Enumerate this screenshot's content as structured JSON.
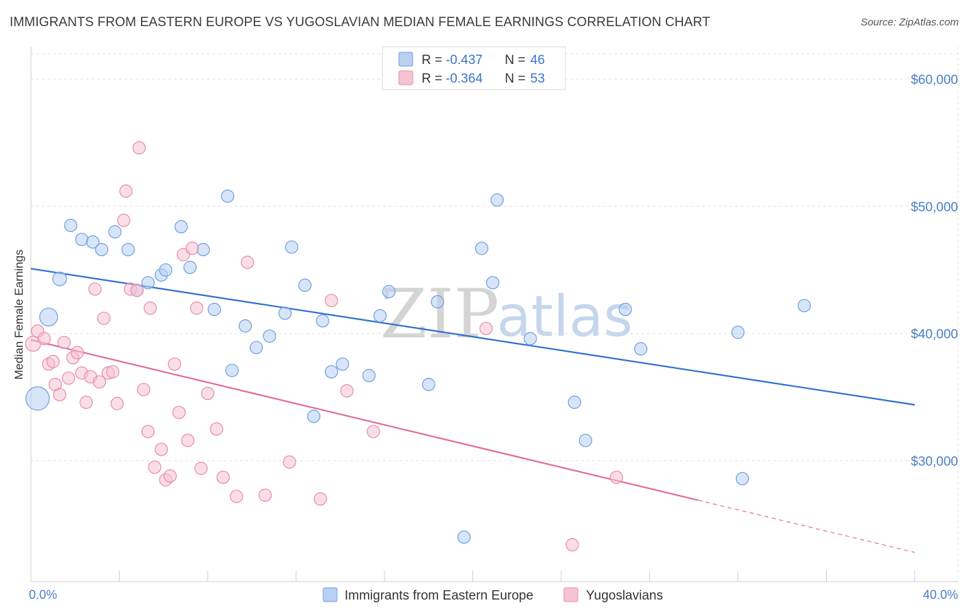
{
  "title": "IMMIGRANTS FROM EASTERN EUROPE VS YUGOSLAVIAN MEDIAN FEMALE EARNINGS CORRELATION CHART",
  "source": "Source: ZipAtlas.com",
  "watermark": {
    "zip": "ZIP",
    "atlas": "atlas"
  },
  "legend": {
    "r_label": "R =",
    "n_label": "N =",
    "rows": [
      {
        "r": "-0.437",
        "n": "46"
      },
      {
        "r": "-0.364",
        "n": "53"
      }
    ]
  },
  "chart_data": {
    "type": "scatter",
    "title": "IMMIGRANTS FROM EASTERN EUROPE VS YUGOSLAVIAN MEDIAN FEMALE EARNINGS CORRELATION CHART",
    "xlabel": "",
    "ylabel": "Median Female Earnings",
    "xlim": [
      0,
      40
    ],
    "ylim": [
      20500,
      62000
    ],
    "x_tick_labels": [
      "0.0%",
      "40.0%"
    ],
    "y_ticks": [
      30000,
      40000,
      50000,
      60000
    ],
    "y_tick_labels": [
      "$30,000",
      "$40,000",
      "$50,000",
      "$60,000"
    ],
    "grid": true,
    "series": [
      {
        "name": "Immigrants from Eastern Europe",
        "color": "#6b9ee0",
        "fill": "#b8d0f2",
        "trend": {
          "x": [
            0,
            40
          ],
          "y": [
            45100,
            34400
          ]
        },
        "points": [
          [
            0.3,
            34900,
            17
          ],
          [
            1.3,
            44300,
            10
          ],
          [
            0.8,
            41300,
            13
          ],
          [
            1.8,
            48500,
            9
          ],
          [
            2.3,
            47400,
            9
          ],
          [
            2.8,
            47200,
            9
          ],
          [
            3.2,
            46600,
            9
          ],
          [
            3.8,
            48000,
            9
          ],
          [
            4.4,
            46600,
            9
          ],
          [
            4.8,
            43400,
            9
          ],
          [
            5.3,
            44000,
            9
          ],
          [
            5.9,
            44600,
            9
          ],
          [
            6.1,
            45000,
            9
          ],
          [
            6.8,
            48400,
            9
          ],
          [
            7.2,
            45200,
            9
          ],
          [
            7.8,
            46600,
            9
          ],
          [
            8.3,
            41900,
            9
          ],
          [
            8.9,
            50800,
            9
          ],
          [
            9.1,
            37100,
            9
          ],
          [
            9.7,
            40600,
            9
          ],
          [
            10.2,
            38900,
            9
          ],
          [
            10.8,
            39800,
            9
          ],
          [
            11.5,
            41600,
            9
          ],
          [
            11.8,
            46800,
            9
          ],
          [
            12.4,
            43800,
            9
          ],
          [
            12.8,
            33500,
            9
          ],
          [
            13.2,
            41000,
            9
          ],
          [
            13.6,
            37000,
            9
          ],
          [
            14.1,
            37600,
            9
          ],
          [
            15.3,
            36700,
            9
          ],
          [
            15.8,
            41400,
            9
          ],
          [
            16.2,
            43300,
            9
          ],
          [
            18.0,
            36000,
            9
          ],
          [
            18.4,
            42500,
            9
          ],
          [
            19.6,
            24000,
            9
          ],
          [
            20.4,
            46700,
            9
          ],
          [
            20.9,
            44000,
            9
          ],
          [
            21.1,
            50500,
            9
          ],
          [
            22.6,
            39600,
            9
          ],
          [
            24.6,
            34600,
            9
          ],
          [
            25.1,
            31600,
            9
          ],
          [
            26.9,
            41900,
            9
          ],
          [
            27.6,
            38800,
            9
          ],
          [
            32.0,
            40100,
            9
          ],
          [
            35.0,
            42200,
            9
          ],
          [
            32.2,
            28600,
            9
          ]
        ]
      },
      {
        "name": "Yugoslavians",
        "color": "#e889a8",
        "fill": "#f6c3d4",
        "trend": {
          "x": [
            0,
            30.2
          ],
          "y": [
            39500,
            26900
          ]
        },
        "trend_dashed": {
          "x": [
            30.2,
            40
          ],
          "y": [
            26900,
            22800
          ]
        },
        "points": [
          [
            0.1,
            39200,
            11
          ],
          [
            0.3,
            40200,
            9
          ],
          [
            0.6,
            39600,
            9
          ],
          [
            0.8,
            37600,
            9
          ],
          [
            1.0,
            37800,
            9
          ],
          [
            1.1,
            36000,
            9
          ],
          [
            1.3,
            35200,
            9
          ],
          [
            1.5,
            39300,
            9
          ],
          [
            1.7,
            36500,
            9
          ],
          [
            1.9,
            38100,
            9
          ],
          [
            2.1,
            38500,
            9
          ],
          [
            2.3,
            36900,
            9
          ],
          [
            2.5,
            34600,
            9
          ],
          [
            2.7,
            36600,
            9
          ],
          [
            2.9,
            43500,
            9
          ],
          [
            3.1,
            36200,
            9
          ],
          [
            3.3,
            41200,
            9
          ],
          [
            3.5,
            36900,
            9
          ],
          [
            3.7,
            37000,
            9
          ],
          [
            3.9,
            34500,
            9
          ],
          [
            4.2,
            48900,
            9
          ],
          [
            4.3,
            51200,
            9
          ],
          [
            4.5,
            43500,
            9
          ],
          [
            4.8,
            43400,
            9
          ],
          [
            4.9,
            54600,
            9
          ],
          [
            5.1,
            35600,
            9
          ],
          [
            5.3,
            32300,
            9
          ],
          [
            5.4,
            42000,
            9
          ],
          [
            5.6,
            29500,
            9
          ],
          [
            5.9,
            30900,
            9
          ],
          [
            6.1,
            28500,
            9
          ],
          [
            6.3,
            28800,
            9
          ],
          [
            6.5,
            37600,
            9
          ],
          [
            6.7,
            33800,
            9
          ],
          [
            6.9,
            46200,
            9
          ],
          [
            7.1,
            31600,
            9
          ],
          [
            7.3,
            46700,
            9
          ],
          [
            7.5,
            42000,
            9
          ],
          [
            7.7,
            29400,
            9
          ],
          [
            8.0,
            35300,
            9
          ],
          [
            8.4,
            32500,
            9
          ],
          [
            8.7,
            28700,
            9
          ],
          [
            9.3,
            27200,
            9
          ],
          [
            9.8,
            45600,
            9
          ],
          [
            10.6,
            27300,
            9
          ],
          [
            11.7,
            29900,
            9
          ],
          [
            13.1,
            27000,
            9
          ],
          [
            13.6,
            42600,
            9
          ],
          [
            14.3,
            35500,
            9
          ],
          [
            15.5,
            32300,
            9
          ],
          [
            20.6,
            40400,
            9
          ],
          [
            26.5,
            28700,
            9
          ],
          [
            24.5,
            23400,
            9
          ]
        ]
      }
    ]
  }
}
